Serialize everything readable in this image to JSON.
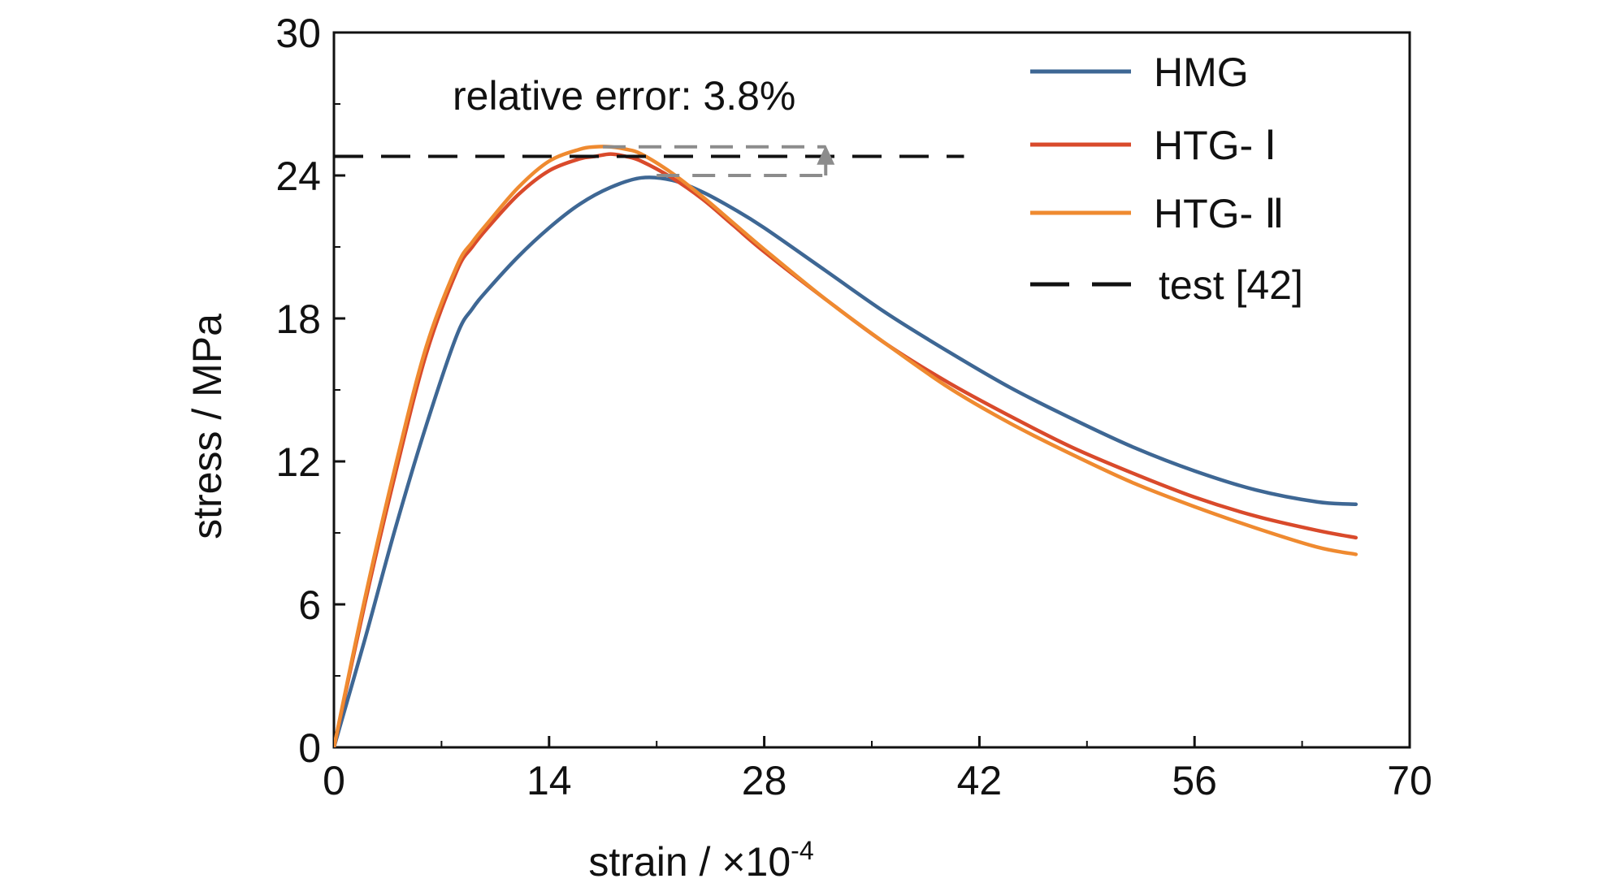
{
  "chart_data": {
    "type": "line",
    "title": "",
    "xlabel": "strain / ×10",
    "xlabel_exponent": "-4",
    "ylabel": "stress / MPa",
    "xlim": [
      0,
      70
    ],
    "ylim": [
      0,
      30
    ],
    "xticks": [
      0,
      14,
      28,
      42,
      56,
      70
    ],
    "xtick_labels": [
      "0",
      "14",
      "28",
      "42",
      "56",
      "70"
    ],
    "yticks": [
      0,
      6,
      12,
      18,
      24,
      30
    ],
    "ytick_labels": [
      "0",
      "6",
      "12",
      "18",
      "24",
      "30"
    ],
    "grid": false,
    "legend_position": "top-right",
    "annotation": "relative error: 3.8%",
    "series": [
      {
        "name": "HMG",
        "color": "#3e6794",
        "dash": "solid",
        "x": [
          0,
          2,
          4,
          6,
          8,
          9,
          10,
          12,
          14,
          16,
          18,
          20,
          22,
          24,
          26,
          28,
          32,
          36,
          40,
          44,
          48,
          52,
          56,
          60,
          64,
          66.5
        ],
        "y": [
          0,
          4.5,
          9.2,
          13.5,
          17.3,
          18.4,
          19.2,
          20.6,
          21.8,
          22.8,
          23.5,
          23.9,
          23.8,
          23.3,
          22.6,
          21.8,
          20,
          18.2,
          16.6,
          15.1,
          13.8,
          12.6,
          11.6,
          10.8,
          10.3,
          10.2
        ]
      },
      {
        "name": "HTG- Ⅰ",
        "color": "#d94a2b",
        "dash": "solid",
        "x": [
          0,
          2,
          4,
          6,
          8,
          9,
          10,
          12,
          14,
          16,
          17,
          18,
          19,
          20,
          22,
          24,
          26,
          28,
          32,
          36,
          40,
          44,
          48,
          52,
          56,
          60,
          64,
          66.5
        ],
        "y": [
          0,
          6,
          11.5,
          16.5,
          20,
          21,
          21.8,
          23.2,
          24.2,
          24.7,
          24.8,
          24.9,
          24.8,
          24.6,
          23.9,
          23,
          21.9,
          20.8,
          18.8,
          16.9,
          15.3,
          13.9,
          12.6,
          11.5,
          10.5,
          9.7,
          9.1,
          8.8
        ]
      },
      {
        "name": "HTG- Ⅱ",
        "color": "#ef8a30",
        "dash": "solid",
        "x": [
          0,
          2,
          4,
          6,
          8,
          9,
          10,
          12,
          14,
          16,
          17,
          18,
          19,
          20,
          22,
          24,
          26,
          28,
          32,
          36,
          40,
          44,
          48,
          52,
          56,
          60,
          64,
          66.5
        ],
        "y": [
          0,
          6.2,
          11.8,
          16.8,
          20.2,
          21.2,
          22,
          23.5,
          24.6,
          25.1,
          25.2,
          25.2,
          25.1,
          24.9,
          24.1,
          23.1,
          22,
          20.9,
          18.8,
          16.9,
          15.1,
          13.6,
          12.3,
          11.1,
          10.1,
          9.2,
          8.4,
          8.1
        ]
      },
      {
        "name": "test [42]",
        "color": "#111111",
        "dash": "dashed",
        "x": [
          0,
          41
        ],
        "y": [
          24.8,
          24.8
        ]
      }
    ]
  }
}
